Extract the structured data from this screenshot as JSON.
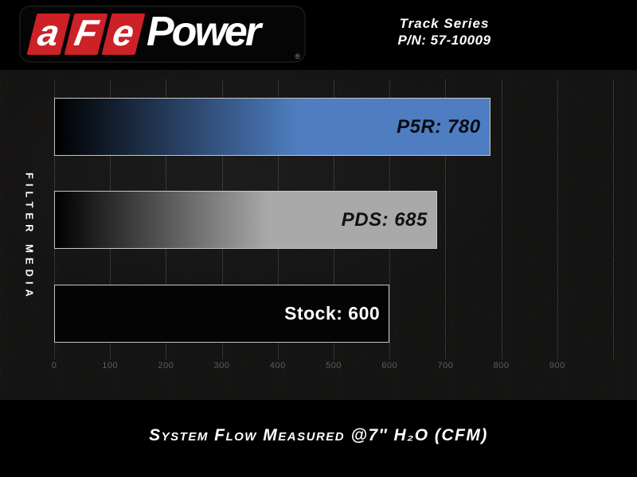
{
  "header": {
    "logo": {
      "prefix": "aFe",
      "suffix": "Power",
      "registered": "®"
    },
    "series_name": "Track Series",
    "part_number": "P/N: 57-10009"
  },
  "chart_data": {
    "type": "bar",
    "orientation": "horizontal",
    "title": "System Flow Measured @7″ H₂O (CFM)",
    "ylabel": "FILTER MEDIA",
    "categories": [
      "P5R",
      "PDS",
      "Stock"
    ],
    "values": [
      780,
      685,
      600
    ],
    "bar_labels": [
      "P5R: 780",
      "PDS: 685",
      "Stock: 600"
    ],
    "xlim": [
      0,
      1000
    ],
    "xtick_labels": [
      "0",
      "100",
      "200",
      "300",
      "400",
      "500",
      "600",
      "700",
      "800",
      "900"
    ],
    "gridline_values": [
      0,
      100,
      200,
      300,
      400,
      500,
      600,
      700,
      800,
      900,
      1000
    ],
    "grid": true,
    "legend": false,
    "bar_styles": [
      {
        "start_color": "#000000",
        "end_color": "#4e7ec1",
        "label_color": "#0a0a12",
        "label_italic": true
      },
      {
        "start_color": "#000000",
        "end_color": "#a9a9a9",
        "label_color": "#111111",
        "label_italic": true
      },
      {
        "start_color": "#040404",
        "end_color": "#040404",
        "label_color": "#ffffff",
        "label_italic": false
      }
    ]
  },
  "colors": {
    "accent_red": "#cc2127",
    "bar_border": "#c6c6c6",
    "gridline": "#828282",
    "tick_text": "#5e5e5e",
    "background": "#000000",
    "plot_background": "#151413"
  }
}
